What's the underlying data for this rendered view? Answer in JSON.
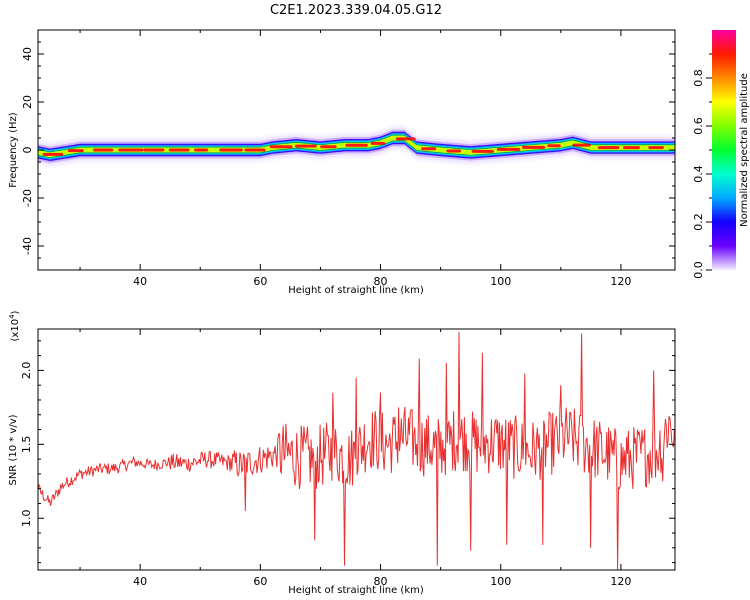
{
  "title": "C2E1.2023.339.04.05.G12",
  "chart_data": [
    {
      "type": "heatmap",
      "xlabel": "Height of straight line (km)",
      "ylabel": "Frequency (Hz)",
      "xlim": [
        23,
        129
      ],
      "ylim": [
        -50,
        50
      ],
      "xticks": [
        40,
        60,
        80,
        100,
        120
      ],
      "yticks": [
        -40,
        -20,
        0,
        20,
        40
      ],
      "band_center": {
        "x": [
          23,
          25,
          30,
          40,
          50,
          60,
          62,
          66,
          70,
          74,
          78,
          80,
          82,
          84,
          86,
          90,
          95,
          100,
          105,
          110,
          112,
          115,
          120,
          125,
          129
        ],
        "y": [
          -1,
          -2,
          0,
          0,
          0,
          0,
          1,
          2,
          1,
          2,
          2,
          3,
          5,
          5,
          1,
          0,
          -1,
          0,
          1,
          2,
          3,
          1,
          1,
          1,
          1
        ]
      },
      "colorbar": {
        "label": "Normalized spectral amplitude",
        "range": [
          0,
          1
        ],
        "ticks": [
          "0.0",
          "0.2",
          "0.4",
          "0.6",
          "0.8"
        ]
      }
    },
    {
      "type": "line",
      "xlabel": "Height of straight line (km)",
      "ylabel": "SNR (10 * v/v)",
      "scale_label": "(x10",
      "scale_exp": "4",
      "scale_close": ")",
      "xlim": [
        23,
        129
      ],
      "ylim": [
        0.65,
        2.28
      ],
      "xticks": [
        40,
        60,
        80,
        100,
        120
      ],
      "yticks": [
        "1.0",
        "1.5",
        "2.0"
      ],
      "series": [
        {
          "color": "#e83030",
          "x": [
            23,
            25,
            27,
            30,
            33,
            36,
            39,
            42,
            45,
            48,
            51,
            54,
            57,
            60,
            63,
            66,
            69,
            72,
            75,
            78,
            81,
            84,
            87,
            90,
            93,
            96,
            99,
            102,
            105,
            108,
            111,
            114,
            117,
            120,
            123,
            126,
            128,
            129
          ],
          "y": [
            1.2,
            1.1,
            1.22,
            1.3,
            1.33,
            1.34,
            1.38,
            1.36,
            1.38,
            1.37,
            1.4,
            1.38,
            1.36,
            1.4,
            1.44,
            1.42,
            1.4,
            1.45,
            1.4,
            1.55,
            1.5,
            1.55,
            1.5,
            1.48,
            1.55,
            1.5,
            1.52,
            1.48,
            1.45,
            1.5,
            1.55,
            1.5,
            1.45,
            1.38,
            1.42,
            1.45,
            1.65,
            1.55
          ],
          "spikes": [
            [
              57.5,
              1.05
            ],
            [
              69,
              0.85
            ],
            [
              72,
              1.85
            ],
            [
              74,
              0.68
            ],
            [
              76,
              1.95
            ],
            [
              80,
              1.85
            ],
            [
              83,
              1.75
            ],
            [
              86.5,
              2.08
            ],
            [
              89.5,
              0.68
            ],
            [
              91,
              2.05
            ],
            [
              93,
              2.26
            ],
            [
              95,
              0.78
            ],
            [
              97,
              2.12
            ],
            [
              101,
              0.82
            ],
            [
              104,
              1.98
            ],
            [
              107,
              0.82
            ],
            [
              110,
              1.9
            ],
            [
              113.5,
              2.25
            ],
            [
              115,
              0.8
            ],
            [
              119.5,
              0.65
            ],
            [
              121,
              1.55
            ],
            [
              125.5,
              2.0
            ],
            [
              127,
              1.25
            ]
          ]
        }
      ]
    }
  ]
}
